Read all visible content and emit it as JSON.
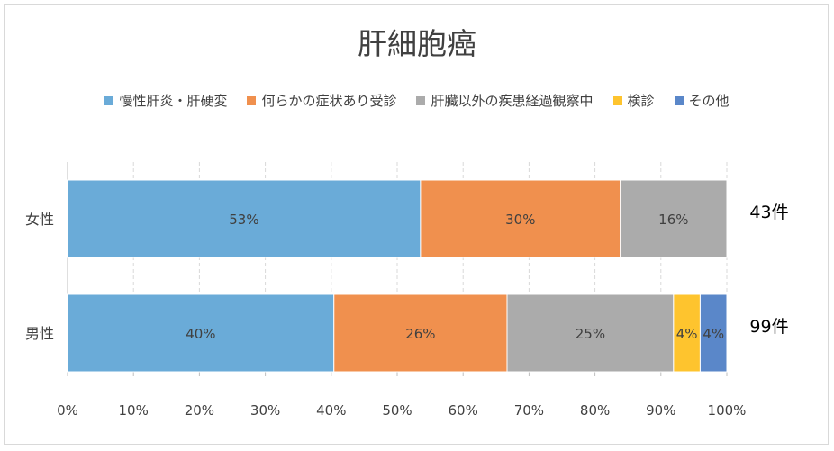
{
  "chart_data": {
    "type": "bar",
    "orientation": "horizontal",
    "stacked": "percent",
    "title": "肝細胞癌",
    "categories": [
      "女性",
      "男性"
    ],
    "series": [
      {
        "name": "慢性肝炎・肝硬変",
        "color": "#6aabd8",
        "values": [
          53,
          40
        ],
        "labels": [
          "53%",
          "40%"
        ]
      },
      {
        "name": "何らかの症状あり受診",
        "color": "#f0904e",
        "values": [
          30,
          26
        ],
        "labels": [
          "30%",
          "26%"
        ]
      },
      {
        "name": "肝臓以外の疾患経過観察中",
        "color": "#ababab",
        "values": [
          16,
          25
        ],
        "labels": [
          "16%",
          "25%"
        ]
      },
      {
        "name": "検診",
        "color": "#fec42e",
        "values": [
          0,
          4
        ],
        "labels": [
          "",
          "4%"
        ]
      },
      {
        "name": "その他",
        "color": "#5a87c9",
        "values": [
          0,
          4
        ],
        "labels": [
          "",
          "4%"
        ]
      }
    ],
    "counts": [
      "43件",
      "99件"
    ],
    "xlim": [
      0,
      100
    ],
    "xticks": [
      "0%",
      "10%",
      "20%",
      "30%",
      "40%",
      "50%",
      "60%",
      "70%",
      "80%",
      "90%",
      "100%"
    ],
    "grid": true,
    "legend_position": "top"
  }
}
